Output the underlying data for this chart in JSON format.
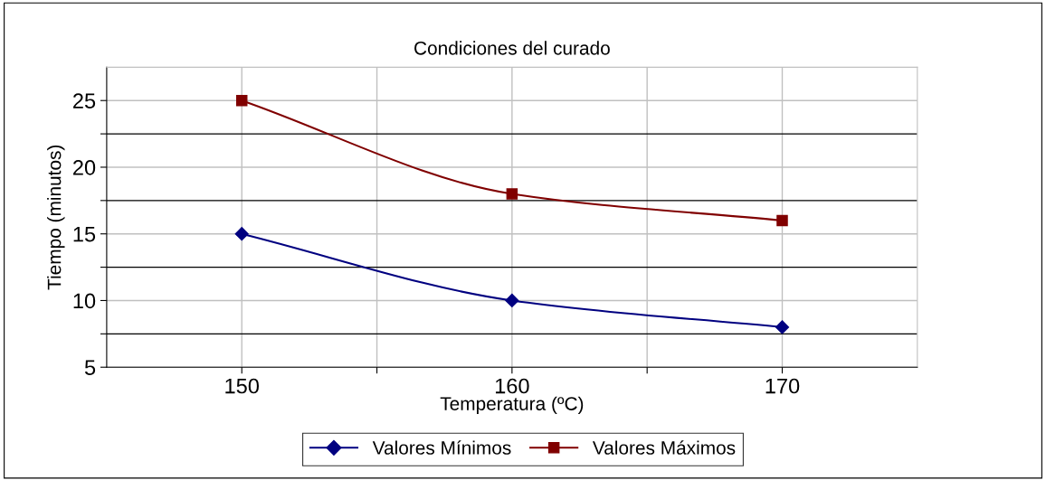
{
  "chart_data": {
    "type": "line",
    "title": "Condiciones del curado",
    "xlabel": "Temperatura (ºC)",
    "ylabel": "Tiempo (minutos)",
    "x": [
      150,
      160,
      170
    ],
    "series": [
      {
        "name": "Valores Mínimos",
        "color": "#000080",
        "values": [
          15,
          10,
          8
        ],
        "marker": "diamond"
      },
      {
        "name": "Valores Máximos",
        "color": "#800000",
        "values": [
          25,
          18,
          16
        ],
        "marker": "square"
      }
    ],
    "xlim": [
      145,
      175
    ],
    "xticks": [
      150,
      {
        "value": 155,
        "label": null
      },
      160,
      {
        "value": 165,
        "label": null
      },
      170
    ],
    "ylim": [
      5,
      27.5
    ],
    "yticks": [
      5,
      {
        "value": 7.5,
        "label": null
      },
      10,
      {
        "value": 12.5,
        "label": null
      },
      15,
      {
        "value": 17.5,
        "label": null
      },
      20,
      {
        "value": 22.5,
        "label": null
      },
      25
    ],
    "grid": true,
    "legend": "bottom",
    "line_style": "solid"
  }
}
